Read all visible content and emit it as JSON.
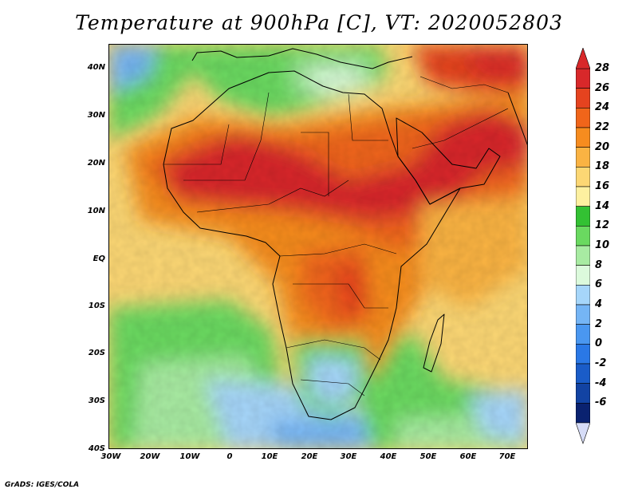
{
  "title": "Temperature at 900hPa [C], VT: 2020052803",
  "credit": "GrADS: IGES/COLA",
  "map": {
    "lon_range": [
      -30,
      76
    ],
    "lat_range": [
      -40,
      45
    ],
    "lat_labels": [
      "40N",
      "30N",
      "20N",
      "10N",
      "EQ",
      "10S",
      "20S",
      "30S",
      "40S"
    ],
    "lon_labels": [
      "30W",
      "20W",
      "10W",
      "0",
      "10E",
      "20E",
      "30E",
      "40E",
      "50E",
      "60E",
      "70E"
    ]
  },
  "colorbar": {
    "labels": [
      "28",
      "26",
      "24",
      "22",
      "20",
      "18",
      "16",
      "14",
      "12",
      "10",
      "8",
      "6",
      "4",
      "2",
      "0",
      "-2",
      "-4",
      "-6"
    ],
    "colors": [
      "#d8282a",
      "#e5431f",
      "#f0651a",
      "#f68c1f",
      "#fab343",
      "#fcd774",
      "#fdf0a0",
      "#33c133",
      "#6ad960",
      "#a8eba2",
      "#dcfadc",
      "#a6d6fa",
      "#75b5f5",
      "#4a97f0",
      "#2a78e6",
      "#1a5cc8",
      "#1243a3",
      "#0a2270"
    ],
    "top_arrow_color": "#d8282a",
    "bottom_arrow_color": "#d6dcf7"
  }
}
